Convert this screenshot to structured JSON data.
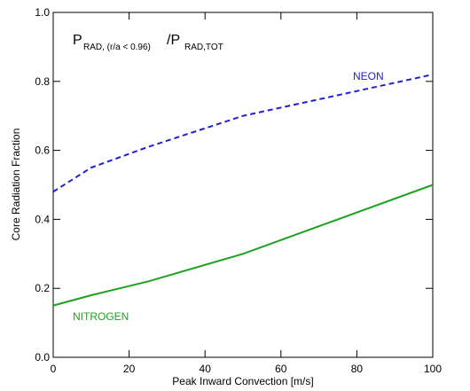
{
  "chart_data": {
    "type": "line",
    "annotation": {
      "main": "P",
      "sub": "RAD, (r/a < 0.96)",
      "main2": "/P",
      "sub2": "RAD,TOT"
    },
    "xlabel": "Peak Inward Convection [m/s]",
    "ylabel": "Core Radiation Fraction",
    "x": [
      0,
      10,
      25,
      50,
      75,
      100
    ],
    "series": [
      {
        "name": "NEON",
        "color": "#2020d0",
        "dashed": true,
        "values": [
          0.48,
          0.55,
          0.61,
          0.7,
          0.76,
          0.82
        ]
      },
      {
        "name": "NITROGEN",
        "color": "#20a020",
        "dashed": false,
        "values": [
          0.15,
          0.18,
          0.22,
          0.3,
          0.4,
          0.5
        ]
      }
    ],
    "xlim": [
      0,
      100
    ],
    "xticks": [
      0,
      20,
      40,
      60,
      80,
      100
    ],
    "ylim": [
      0,
      1
    ],
    "yticks": [
      {
        "value": 0,
        "label": "0.0"
      },
      0.2,
      0.4,
      0.6,
      0.8,
      {
        "value": 1,
        "label": "1.0"
      }
    ]
  }
}
